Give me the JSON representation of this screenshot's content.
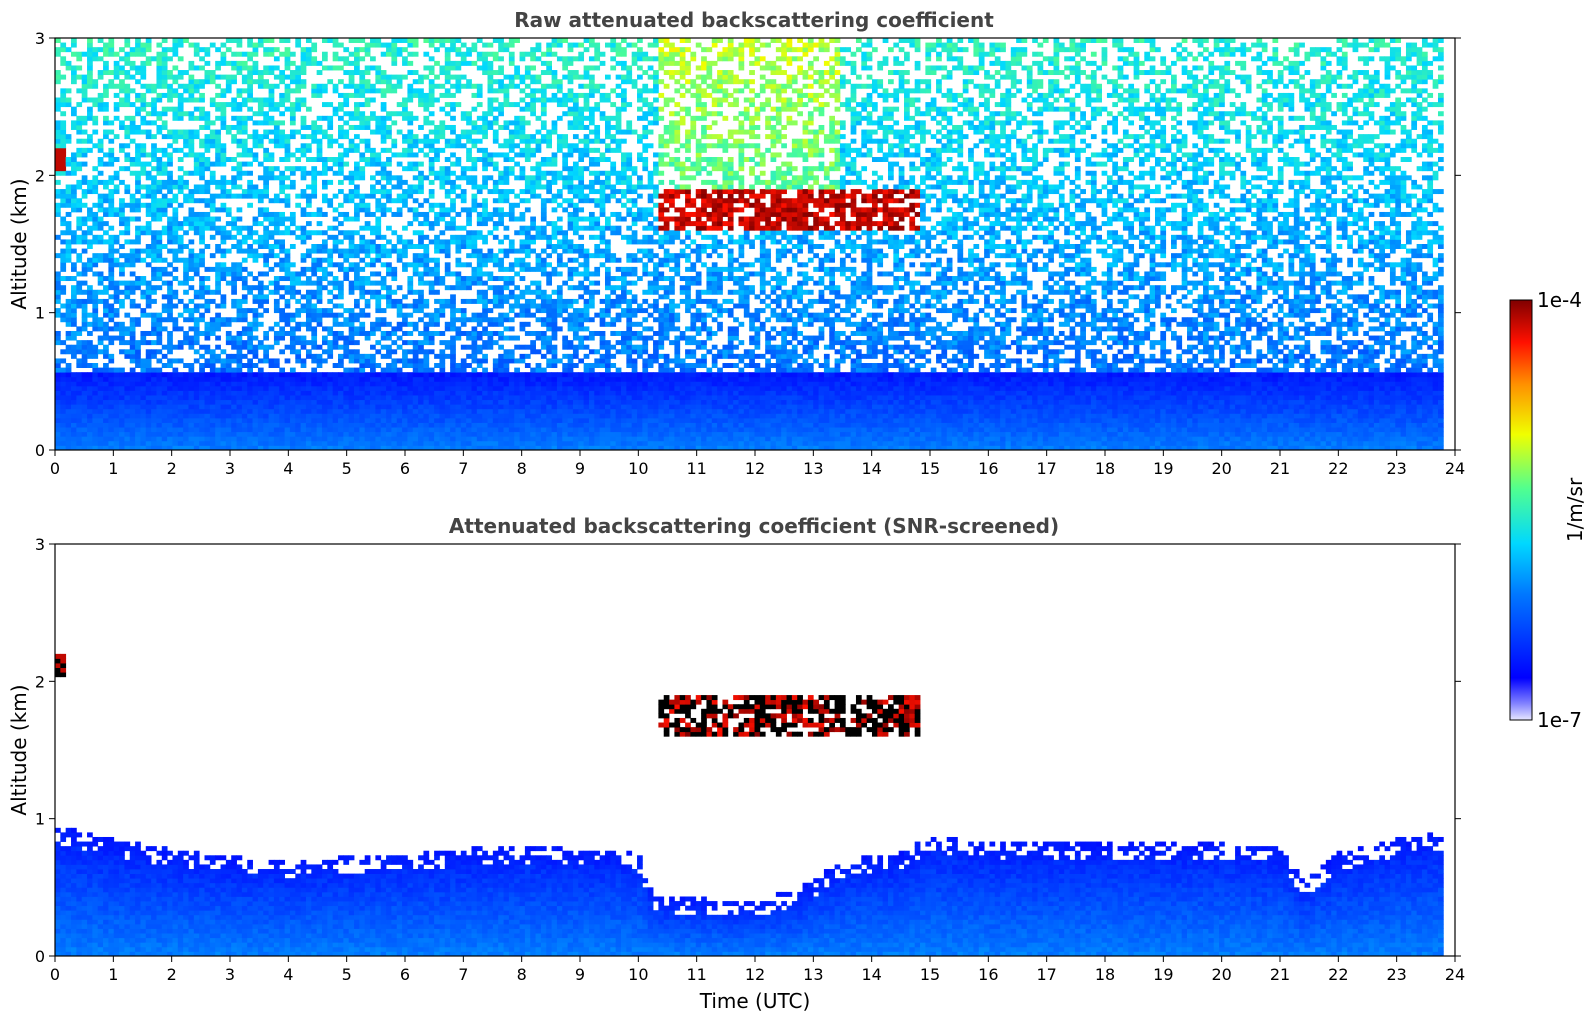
{
  "figure": {
    "colorbar": {
      "label": "1/m/sr",
      "max_label": "1e-4",
      "min_label": "1e-7",
      "scale": "log",
      "range": [
        1e-07,
        0.0001
      ],
      "colormap": "jet"
    }
  },
  "chart_data": [
    {
      "type": "heatmap",
      "title": "Raw attenuated backscattering coefficient",
      "xlabel": "",
      "ylabel": "Altitude (km)",
      "xlim": [
        0,
        24
      ],
      "ylim": [
        0,
        3
      ],
      "x_ticks": [
        "0",
        "1",
        "2",
        "3",
        "4",
        "5",
        "6",
        "7",
        "8",
        "9",
        "10",
        "11",
        "12",
        "13",
        "14",
        "15",
        "16",
        "17",
        "18",
        "19",
        "20",
        "21",
        "22",
        "23",
        "24"
      ],
      "y_ticks": [
        "0",
        "1",
        "2",
        "3"
      ],
      "data_x_end": 23.8,
      "grid": false,
      "features": {
        "boundary_layer_top_km": 0.55,
        "noise_level": "high",
        "cloud_layer": {
          "x_start": 10.3,
          "x_end": 14.8,
          "base_km": 1.6,
          "top_km": 1.9
        },
        "early_cloud": {
          "x_start": 0.0,
          "x_end": 0.12,
          "base_km": 2.05,
          "top_km": 2.2
        }
      }
    },
    {
      "type": "heatmap",
      "title": "Attenuated backscattering coefficient (SNR-screened)",
      "xlabel": "Time (UTC)",
      "ylabel": "Altitude (km)",
      "xlim": [
        0,
        24
      ],
      "ylim": [
        0,
        3
      ],
      "x_ticks": [
        "0",
        "1",
        "2",
        "3",
        "4",
        "5",
        "6",
        "7",
        "8",
        "9",
        "10",
        "11",
        "12",
        "13",
        "14",
        "15",
        "16",
        "17",
        "18",
        "19",
        "20",
        "21",
        "22",
        "23",
        "24"
      ],
      "y_ticks": [
        "0",
        "1",
        "2",
        "3"
      ],
      "data_x_end": 23.8,
      "grid": false,
      "features": {
        "screened_layer_top_km": [
          [
            0.0,
            0.95
          ],
          [
            1.0,
            0.85
          ],
          [
            2.0,
            0.78
          ],
          [
            3.0,
            0.72
          ],
          [
            4.0,
            0.7
          ],
          [
            5.0,
            0.72
          ],
          [
            6.0,
            0.75
          ],
          [
            7.0,
            0.78
          ],
          [
            8.0,
            0.8
          ],
          [
            9.0,
            0.78
          ],
          [
            10.0,
            0.75
          ],
          [
            10.3,
            0.45
          ],
          [
            11.0,
            0.42
          ],
          [
            12.0,
            0.4
          ],
          [
            12.8,
            0.5
          ],
          [
            13.5,
            0.7
          ],
          [
            14.5,
            0.75
          ],
          [
            15.0,
            0.88
          ],
          [
            16.0,
            0.82
          ],
          [
            17.0,
            0.82
          ],
          [
            18.0,
            0.84
          ],
          [
            19.0,
            0.82
          ],
          [
            20.0,
            0.82
          ],
          [
            21.0,
            0.8
          ],
          [
            21.4,
            0.55
          ],
          [
            22.0,
            0.75
          ],
          [
            23.0,
            0.85
          ],
          [
            23.8,
            0.9
          ]
        ],
        "cloud_layer": {
          "x_start": 10.3,
          "x_end": 14.8,
          "base_km": 1.6,
          "top_km": 1.9
        },
        "early_cloud": {
          "x_start": 0.0,
          "x_end": 0.12,
          "base_km": 2.05,
          "top_km": 2.2
        }
      }
    }
  ]
}
